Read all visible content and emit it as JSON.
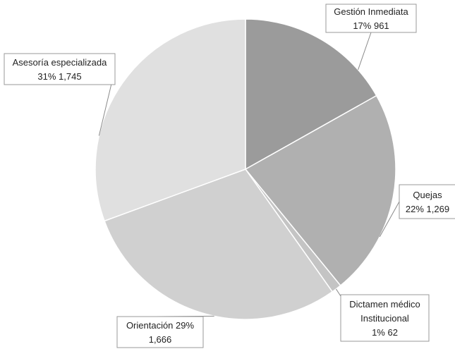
{
  "chart_data": {
    "type": "pie",
    "title": "",
    "start_angle_deg": 0,
    "direction": "clockwise",
    "slices": [
      {
        "label": "Gestión Inmediata",
        "value": 961,
        "percent_label": "17%",
        "value_label": "961",
        "color": "#9b9b9b",
        "label_lines": [
          "Gestión Inmediata",
          "17% 961"
        ]
      },
      {
        "label": "Quejas",
        "value": 1269,
        "percent_label": "22%",
        "value_label": "1,269",
        "color": "#b0b0b0",
        "label_lines": [
          "Quejas",
          "22% 1,269"
        ]
      },
      {
        "label": "Dictamen médico Institucional",
        "value": 62,
        "percent_label": "1%",
        "value_label": "62",
        "color": "#c4c4c4",
        "label_lines": [
          "Dictamen médico",
          "Institucional",
          "1%  62"
        ]
      },
      {
        "label": "Orientación",
        "value": 1666,
        "percent_label": "29%",
        "value_label": "1,666",
        "color": "#d0d0d0",
        "label_lines": [
          "Orientación 29%",
          "1,666"
        ]
      },
      {
        "label": "Asesoría especializada",
        "value": 1745,
        "percent_label": "31%",
        "value_label": "1,745",
        "color": "#e0e0e0",
        "label_lines": [
          "Asesoría especializada",
          "31%  1,745"
        ]
      }
    ]
  }
}
